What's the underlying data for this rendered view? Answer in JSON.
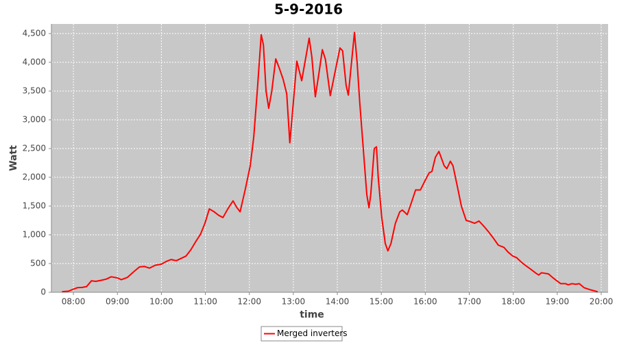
{
  "chart_data": {
    "type": "line",
    "title": "5-9-2016",
    "x_label": "time",
    "y_label": "Watt",
    "x": [
      7.74,
      7.89,
      8.0,
      8.09,
      8.2,
      8.3,
      8.41,
      8.51,
      8.64,
      8.75,
      8.86,
      9.0,
      9.09,
      9.23,
      9.36,
      9.5,
      9.61,
      9.73,
      9.86,
      10.0,
      10.12,
      10.22,
      10.34,
      10.45,
      10.56,
      10.67,
      10.78,
      10.89,
      10.99,
      11.09,
      11.2,
      11.3,
      11.4,
      11.51,
      11.63,
      11.71,
      11.79,
      11.91,
      12.02,
      12.1,
      12.18,
      12.27,
      12.32,
      12.38,
      12.44,
      12.51,
      12.6,
      12.68,
      12.77,
      12.85,
      12.92,
      13.0,
      13.08,
      13.19,
      13.31,
      13.36,
      13.42,
      13.5,
      13.58,
      13.66,
      13.73,
      13.84,
      13.94,
      14.06,
      14.12,
      14.2,
      14.25,
      14.31,
      14.39,
      14.45,
      14.51,
      14.59,
      14.67,
      14.72,
      14.76,
      14.84,
      14.89,
      14.93,
      15.01,
      15.09,
      15.15,
      15.22,
      15.32,
      15.42,
      15.48,
      15.59,
      15.68,
      15.78,
      15.89,
      16.0,
      16.09,
      16.15,
      16.23,
      16.31,
      16.43,
      16.49,
      16.57,
      16.63,
      16.74,
      16.82,
      16.93,
      17.02,
      17.12,
      17.22,
      17.33,
      17.44,
      17.54,
      17.66,
      17.79,
      17.88,
      17.99,
      18.08,
      18.19,
      18.29,
      18.4,
      18.52,
      18.58,
      18.64,
      18.8,
      18.89,
      18.99,
      19.08,
      19.19,
      19.25,
      19.33,
      19.42,
      19.5,
      19.61,
      19.77,
      19.92
    ],
    "series": [
      {
        "name": "Merged inverters",
        "color": "#ff0000",
        "values": [
          10,
          20,
          55,
          80,
          85,
          100,
          200,
          190,
          210,
          230,
          270,
          250,
          220,
          260,
          350,
          440,
          450,
          420,
          470,
          490,
          540,
          570,
          550,
          590,
          630,
          740,
          880,
          1010,
          1200,
          1450,
          1400,
          1340,
          1300,
          1450,
          1590,
          1480,
          1400,
          1800,
          2200,
          2700,
          3500,
          4480,
          4300,
          3500,
          3200,
          3500,
          4060,
          3900,
          3700,
          3450,
          2600,
          3300,
          4020,
          3680,
          4200,
          4420,
          4100,
          3400,
          3800,
          4220,
          4050,
          3420,
          3800,
          4250,
          4200,
          3600,
          3430,
          3900,
          4520,
          4000,
          3300,
          2500,
          1700,
          1470,
          1700,
          2500,
          2530,
          2000,
          1300,
          850,
          720,
          850,
          1200,
          1400,
          1430,
          1350,
          1550,
          1780,
          1780,
          1950,
          2080,
          2100,
          2350,
          2450,
          2200,
          2150,
          2280,
          2200,
          1800,
          1500,
          1250,
          1230,
          1200,
          1240,
          1150,
          1050,
          950,
          820,
          780,
          700,
          630,
          600,
          520,
          460,
          400,
          330,
          300,
          340,
          320,
          260,
          200,
          150,
          150,
          130,
          150,
          140,
          150,
          80,
          40,
          10
        ]
      }
    ],
    "xlim": [
      7.5,
      20.156
    ],
    "ylim": [
      0,
      4667
    ],
    "xticks": [
      {
        "value": 8,
        "label": "08:00"
      },
      {
        "value": 9,
        "label": "09:00"
      },
      {
        "value": 10,
        "label": "10:00"
      },
      {
        "value": 11,
        "label": "11:00"
      },
      {
        "value": 12,
        "label": "12:00"
      },
      {
        "value": 13,
        "label": "13:00"
      },
      {
        "value": 14,
        "label": "14:00"
      },
      {
        "value": 15,
        "label": "15:00"
      },
      {
        "value": 16,
        "label": "16:00"
      },
      {
        "value": 17,
        "label": "17:00"
      },
      {
        "value": 18,
        "label": "18:00"
      },
      {
        "value": 19,
        "label": "19:00"
      },
      {
        "value": 20,
        "label": "20:00"
      }
    ],
    "yticks": [
      0,
      500,
      {
        "value": 1000,
        "label": "1,000"
      },
      {
        "value": 1500,
        "label": "1,500"
      },
      {
        "value": 2000,
        "label": "2,000"
      },
      {
        "value": 2500,
        "label": "2,500"
      },
      {
        "value": 3000,
        "label": "3,000"
      },
      {
        "value": 3500,
        "label": "3,500"
      },
      {
        "value": 4000,
        "label": "4,000"
      },
      {
        "value": 4500,
        "label": "4,500"
      }
    ],
    "grid": true,
    "legend": "bottom"
  }
}
